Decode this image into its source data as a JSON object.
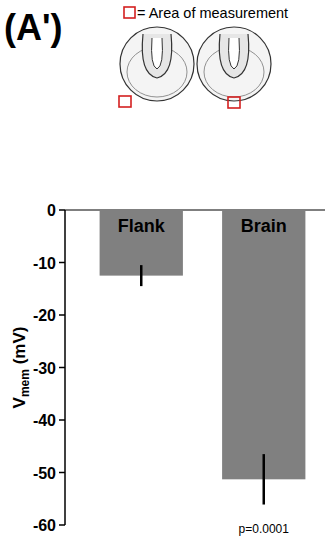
{
  "chart_data": {
    "type": "bar",
    "title": "(A')",
    "annotations": [
      "= Area of measurement",
      "p=0.0001"
    ],
    "y_label": "Vmem (mV)",
    "categories": [
      "Flank",
      "Brain"
    ],
    "values": [
      -12.5,
      -51.3
    ],
    "errors": [
      2,
      4.8
    ],
    "color": "#808080",
    "ylim": [
      -60,
      0
    ],
    "yticks": [
      0,
      -10,
      -20,
      -30,
      -40,
      -50,
      -60
    ],
    "grid": false
  }
}
